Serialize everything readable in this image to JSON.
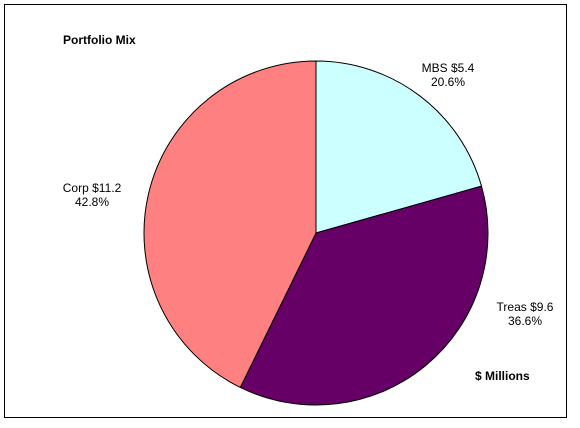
{
  "chart_data": {
    "type": "pie",
    "title": "Portfolio Mix",
    "note": "$ Millions",
    "slices": [
      {
        "label": "MBS",
        "value": 5.4,
        "value_label": "$5.4",
        "percent": 20.6,
        "percent_label": "20.6%",
        "color": "#CCFFFF"
      },
      {
        "label": "Treas",
        "value": 9.6,
        "value_label": "$9.6",
        "percent": 36.6,
        "percent_label": "36.6%",
        "color": "#660066"
      },
      {
        "label": "Corp",
        "value": 11.2,
        "value_label": "$11.2",
        "percent": 42.8,
        "percent_label": "42.8%",
        "color": "#FF8080"
      }
    ],
    "start_angle": "top (12 o'clock)",
    "direction": "clockwise",
    "legend": "none"
  }
}
